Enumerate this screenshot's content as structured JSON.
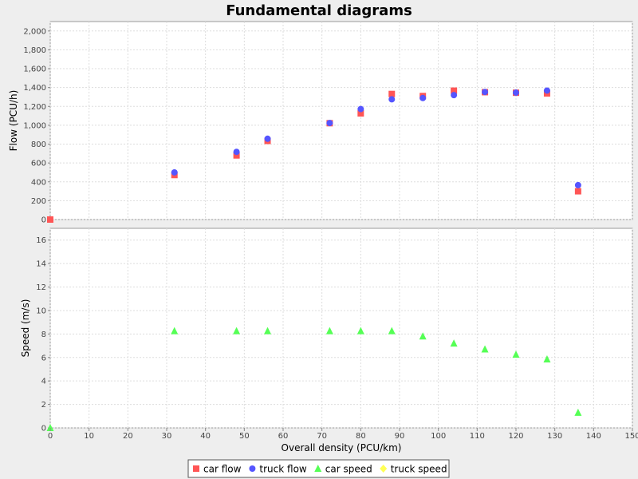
{
  "chart_data": {
    "title": "Fundamental diagrams",
    "type": "scatter",
    "grid": true,
    "legend_position": "bottom",
    "x_axis": {
      "label": "Overall density (PCU/km)",
      "range": [
        0,
        150
      ],
      "ticks": [
        "0",
        "10",
        "20",
        "30",
        "40",
        "50",
        "60",
        "70",
        "80",
        "90",
        "100",
        "110",
        "120",
        "130",
        "140",
        "150"
      ]
    },
    "subplots": [
      {
        "name": "flow",
        "ylabel": "Flow (PCU/h)",
        "ylim": [
          0,
          2100
        ],
        "yticks": [
          "0",
          "200",
          "400",
          "600",
          "800",
          "1,000",
          "1,200",
          "1,400",
          "1,600",
          "1,800",
          "2,000"
        ],
        "series": [
          {
            "name": "car flow",
            "marker": "square",
            "color": "#ff5555",
            "points": [
              [
                0,
                0
              ],
              [
                32,
                472
              ],
              [
                48,
                680
              ],
              [
                56,
                834
              ],
              [
                72,
                1022
              ],
              [
                80,
                1126
              ],
              [
                88,
                1332
              ],
              [
                96,
                1310
              ],
              [
                104,
                1367
              ],
              [
                112,
                1351
              ],
              [
                120,
                1345
              ],
              [
                128,
                1338
              ],
              [
                136,
                300
              ]
            ]
          },
          {
            "name": "truck flow",
            "marker": "circle",
            "color": "#5555ff",
            "points": [
              [
                32,
                500
              ],
              [
                48,
                718
              ],
              [
                56,
                857
              ],
              [
                72,
                1024
              ],
              [
                80,
                1172
              ],
              [
                88,
                1275
              ],
              [
                96,
                1289
              ],
              [
                104,
                1320
              ],
              [
                112,
                1353
              ],
              [
                120,
                1346
              ],
              [
                128,
                1368
              ],
              [
                136,
                365
              ]
            ]
          }
        ]
      },
      {
        "name": "speed",
        "ylabel": "Speed (m/s)",
        "ylim": [
          0,
          17
        ],
        "yticks": [
          "0",
          "2",
          "4",
          "6",
          "8",
          "10",
          "12",
          "14",
          "16"
        ],
        "series": [
          {
            "name": "car speed",
            "marker": "triangle",
            "color": "#55ff55",
            "points": [
              [
                0,
                0
              ],
              [
                32,
                8.25
              ],
              [
                48,
                8.25
              ],
              [
                56,
                8.25
              ],
              [
                72,
                8.25
              ],
              [
                80,
                8.25
              ],
              [
                88,
                8.25
              ],
              [
                96,
                7.8
              ],
              [
                104,
                7.2
              ],
              [
                112,
                6.7
              ],
              [
                120,
                6.25
              ],
              [
                128,
                5.85
              ],
              [
                136,
                1.3
              ]
            ]
          },
          {
            "name": "truck speed",
            "marker": "diamond",
            "color": "#ffff55",
            "points": []
          }
        ]
      }
    ]
  }
}
